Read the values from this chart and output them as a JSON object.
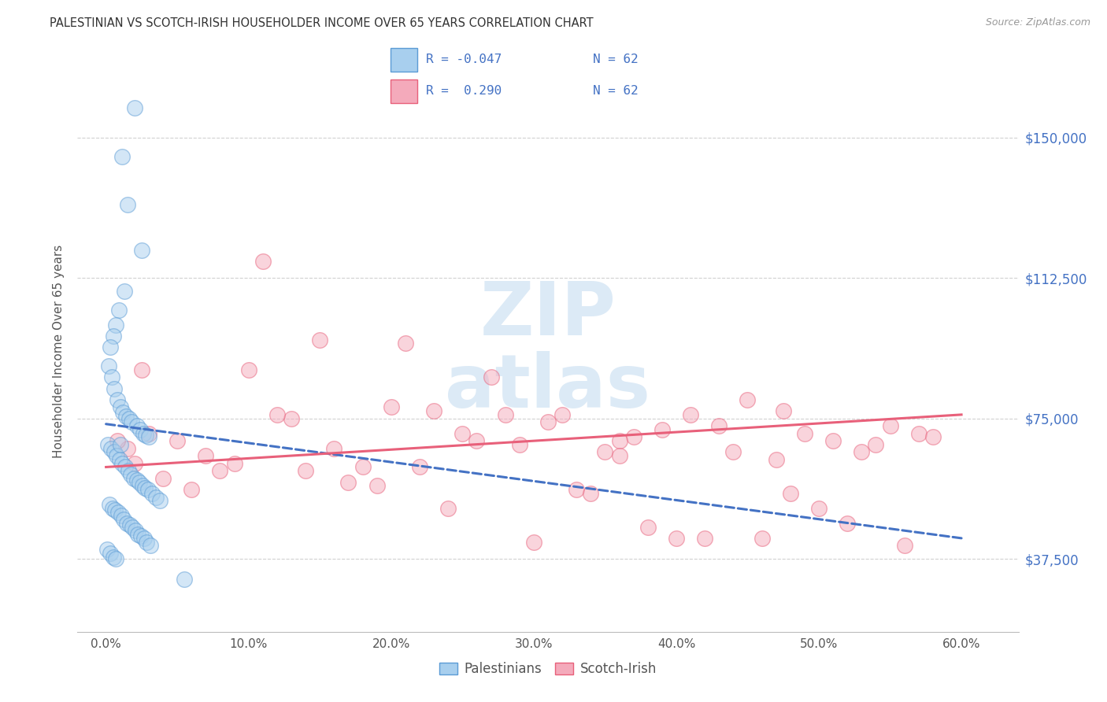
{
  "title": "PALESTINIAN VS SCOTCH-IRISH HOUSEHOLDER INCOME OVER 65 YEARS CORRELATION CHART",
  "source": "Source: ZipAtlas.com",
  "ylabel": "Householder Income Over 65 years",
  "xlabel_ticks": [
    "0.0%",
    "10.0%",
    "20.0%",
    "30.0%",
    "40.0%",
    "50.0%",
    "60.0%"
  ],
  "xlabel_vals": [
    0.0,
    10.0,
    20.0,
    30.0,
    40.0,
    50.0,
    60.0
  ],
  "ytick_labels": [
    "$37,500",
    "$75,000",
    "$112,500",
    "$150,000"
  ],
  "ytick_vals": [
    37500,
    75000,
    112500,
    150000
  ],
  "xlim": [
    -2,
    64
  ],
  "ylim": [
    18000,
    168000
  ],
  "blue_R": "-0.047",
  "blue_N": "62",
  "pink_R": "0.290",
  "pink_N": "62",
  "legend_label_blue": "Palestinians",
  "legend_label_pink": "Scotch-Irish",
  "blue_fill": "#A8CFEE",
  "blue_edge": "#5B9BD5",
  "pink_fill": "#F4AABB",
  "pink_edge": "#E8607A",
  "blue_line_color": "#4472C4",
  "pink_line_color": "#E8607A",
  "watermark_color": "#C5DCF0",
  "blue_x": [
    1.1,
    2.0,
    1.5,
    2.5,
    1.3,
    0.9,
    0.7,
    0.5,
    0.3,
    0.2,
    0.4,
    0.6,
    0.8,
    1.0,
    1.2,
    1.4,
    1.6,
    1.8,
    2.2,
    2.4,
    2.6,
    2.8,
    3.0,
    0.15,
    0.35,
    0.55,
    0.75,
    0.95,
    1.15,
    1.35,
    1.55,
    1.75,
    1.95,
    2.15,
    2.35,
    2.55,
    2.75,
    2.95,
    3.2,
    3.5,
    3.8,
    0.25,
    0.45,
    0.65,
    0.85,
    1.05,
    1.25,
    1.45,
    1.65,
    1.85,
    2.05,
    2.25,
    2.45,
    2.65,
    2.85,
    3.1,
    0.1,
    0.3,
    0.5,
    0.7,
    1.0,
    5.5
  ],
  "blue_y": [
    145000,
    158000,
    132000,
    120000,
    109000,
    104000,
    100000,
    97000,
    94000,
    89000,
    86000,
    83000,
    80000,
    78000,
    76500,
    75500,
    75000,
    74000,
    73000,
    72000,
    71000,
    70500,
    70000,
    68000,
    67000,
    66000,
    65000,
    64000,
    63000,
    62000,
    61000,
    60000,
    59000,
    58500,
    58000,
    57000,
    56500,
    56000,
    55000,
    54000,
    53000,
    52000,
    51000,
    50500,
    50000,
    49000,
    48000,
    47000,
    46500,
    46000,
    45000,
    44000,
    43500,
    43000,
    42000,
    41000,
    40000,
    39000,
    38000,
    37500,
    68000,
    32000
  ],
  "pink_x": [
    1.5,
    3.0,
    5.0,
    7.0,
    9.0,
    11.0,
    13.0,
    15.0,
    17.0,
    19.0,
    21.0,
    23.0,
    25.0,
    27.0,
    29.0,
    31.0,
    33.0,
    35.0,
    37.0,
    39.0,
    41.0,
    43.0,
    45.0,
    47.0,
    49.0,
    51.0,
    53.0,
    55.0,
    57.0,
    2.0,
    4.0,
    6.0,
    8.0,
    10.0,
    12.0,
    14.0,
    16.0,
    18.0,
    20.0,
    22.0,
    24.0,
    26.0,
    28.0,
    30.0,
    32.0,
    34.0,
    36.0,
    38.0,
    40.0,
    42.0,
    44.0,
    46.0,
    48.0,
    50.0,
    52.0,
    54.0,
    56.0,
    58.0,
    0.8,
    2.5,
    36.0,
    47.5
  ],
  "pink_y": [
    67000,
    71000,
    69000,
    65000,
    63000,
    117000,
    75000,
    96000,
    58000,
    57000,
    95000,
    77000,
    71000,
    86000,
    68000,
    74000,
    56000,
    66000,
    70000,
    72000,
    76000,
    73000,
    80000,
    64000,
    71000,
    69000,
    66000,
    73000,
    71000,
    63000,
    59000,
    56000,
    61000,
    88000,
    76000,
    61000,
    67000,
    62000,
    78000,
    62000,
    51000,
    69000,
    76000,
    42000,
    76000,
    55000,
    69000,
    46000,
    43000,
    43000,
    66000,
    43000,
    55000,
    51000,
    47000,
    68000,
    41000,
    70000,
    69000,
    88000,
    65000,
    77000
  ],
  "blue_trend": [
    73500,
    43000
  ],
  "pink_trend": [
    62000,
    76000
  ],
  "trend_x": [
    0,
    60
  ]
}
